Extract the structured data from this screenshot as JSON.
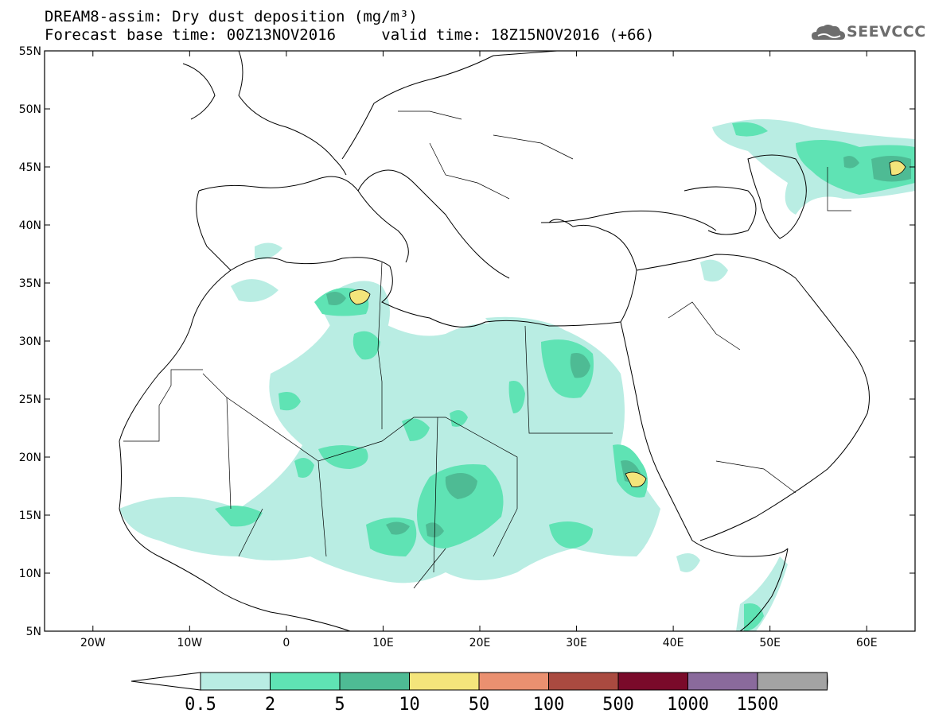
{
  "header": {
    "title": "DREAM8-assim: Dry dust deposition (mg/m³)",
    "line2_left": "Forecast base time: 00Z13NOV2016",
    "line2_right": "valid time: 18Z15NOV2016 (+66)"
  },
  "logo": {
    "text": "SEEVCCC",
    "icon": "cloud-icon"
  },
  "map": {
    "lon_range": [
      -25,
      65
    ],
    "lat_range": [
      5,
      55
    ],
    "lat_ticks": [
      "55N",
      "50N",
      "45N",
      "40N",
      "35N",
      "30N",
      "25N",
      "20N",
      "15N",
      "10N",
      "5N"
    ],
    "lon_ticks": [
      "20W",
      "10W",
      "0",
      "10E",
      "20E",
      "30E",
      "40E",
      "50E",
      "60E"
    ]
  },
  "colorbar": {
    "labels": [
      "0.5",
      "2",
      "5",
      "10",
      "50",
      "100",
      "500",
      "1000",
      "1500"
    ],
    "colors": [
      "#b9ede3",
      "#5fe3b4",
      "#4ebb94",
      "#f4e57b",
      "#ea9070",
      "#aa4a40",
      "#7a0a2a",
      "#8a6a9c",
      "#a3a3a3"
    ],
    "end_colors": {
      "low": "#ffffff",
      "high": "#a3a3a3"
    }
  }
}
